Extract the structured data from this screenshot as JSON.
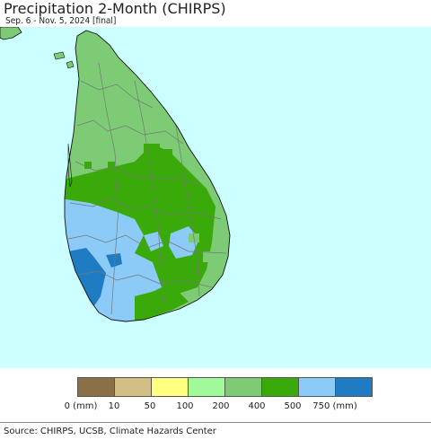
{
  "header": {
    "title": "Precipitation 2-Month (CHIRPS)",
    "subtitle": "Sep. 6 - Nov. 5, 2024 [final]"
  },
  "map": {
    "ocean_color": "#ccffff",
    "land_neighbor_color": "#7ecb76",
    "boundary_color": "#777777",
    "coastline_color": "#111111"
  },
  "legend": {
    "swatches": [
      {
        "color": "#8b6f47",
        "label": "0 (mm)"
      },
      {
        "color": "#d2bf84",
        "label": "10"
      },
      {
        "color": "#ffff80",
        "label": "50"
      },
      {
        "color": "#a0fa9a",
        "label": "100"
      },
      {
        "color": "#7ecb76",
        "label": "200"
      },
      {
        "color": "#3aaa0a",
        "label": "400"
      },
      {
        "color": "#8ccaf7",
        "label": "500"
      },
      {
        "color": "#1f7cc3",
        "label": "750 (mm)"
      }
    ]
  },
  "footer": {
    "source": "Source: CHIRPS, UCSB, Climate Hazards Center"
  }
}
